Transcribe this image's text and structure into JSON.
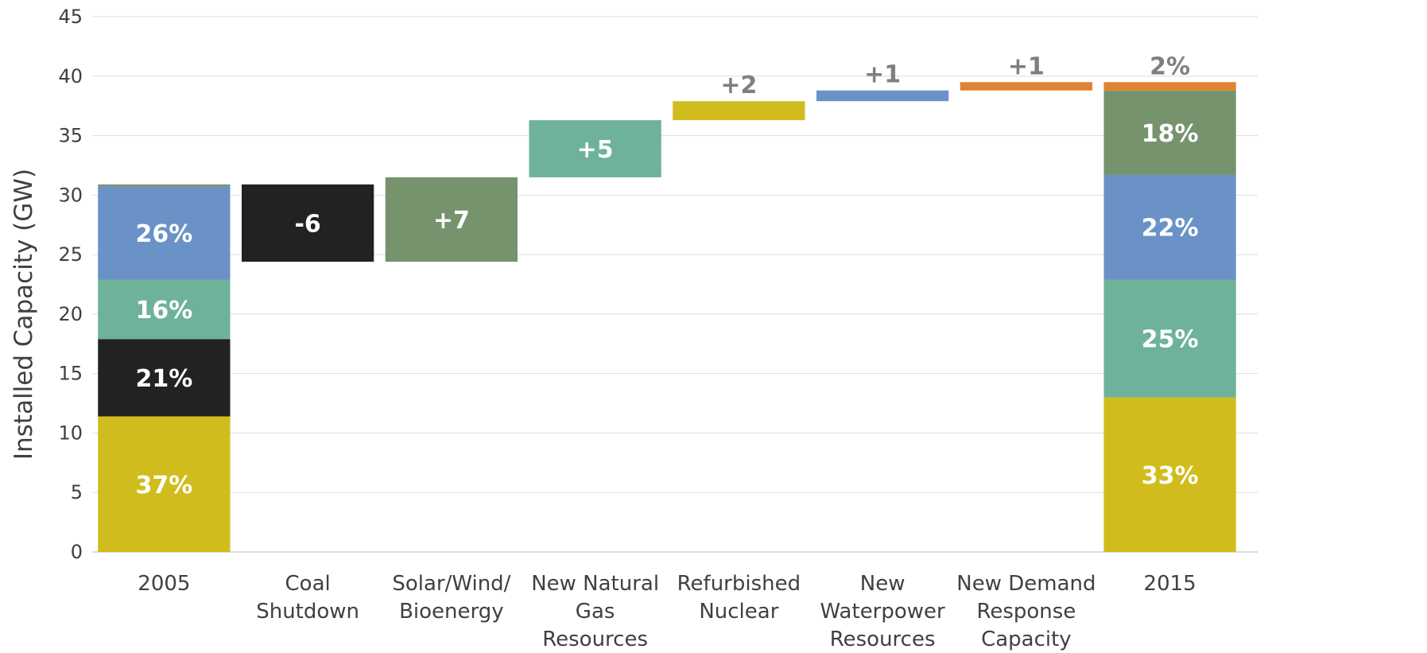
{
  "chart_data": {
    "type": "bar",
    "subtype": "waterfall",
    "title": "",
    "ylabel": "Installed Capacity (GW)",
    "xlabel": "",
    "ylim": [
      0,
      45
    ],
    "yticks": [
      0,
      5,
      10,
      15,
      20,
      25,
      30,
      35,
      40,
      45
    ],
    "grid": true,
    "legend": "none",
    "colors": {
      "nuclear": "#d0bd1d",
      "coal": "#222222",
      "gas": "#6eb29b",
      "water": "#6a92c7",
      "renewable": "#76936e",
      "demand": "#e08232"
    },
    "categories": [
      {
        "label": [
          "2005"
        ]
      },
      {
        "label": [
          "Coal",
          "Shutdown"
        ]
      },
      {
        "label": [
          "Solar/Wind/",
          "Bioenergy"
        ]
      },
      {
        "label": [
          "New Natural",
          "Gas",
          "Resources"
        ]
      },
      {
        "label": [
          "Refurbished",
          "Nuclear"
        ]
      },
      {
        "label": [
          "New",
          "Waterpower",
          "Resources"
        ]
      },
      {
        "label": [
          "New Demand",
          "Response",
          "Capacity"
        ]
      },
      {
        "label": [
          "2015"
        ]
      }
    ],
    "bars": [
      {
        "category": 0,
        "segments": [
          {
            "from": 0,
            "to": 11.4,
            "color": "nuclear",
            "label": "37%",
            "labelColor": "#ffffff"
          },
          {
            "from": 11.4,
            "to": 17.9,
            "color": "coal",
            "label": "21%",
            "labelColor": "#ffffff"
          },
          {
            "from": 17.9,
            "to": 22.9,
            "color": "gas",
            "label": "16%",
            "labelColor": "#ffffff"
          },
          {
            "from": 22.9,
            "to": 30.7,
            "color": "water",
            "label": "26%",
            "labelColor": "#ffffff"
          },
          {
            "from": 30.7,
            "to": 30.9,
            "color": "renewable",
            "label": "",
            "labelColor": "#ffffff"
          }
        ]
      },
      {
        "category": 1,
        "segments": [
          {
            "from": 24.4,
            "to": 30.9,
            "color": "coal",
            "label": "-6",
            "labelColor": "#ffffff"
          }
        ]
      },
      {
        "category": 2,
        "segments": [
          {
            "from": 24.4,
            "to": 31.5,
            "color": "renewable",
            "label": "+7",
            "labelColor": "#ffffff"
          }
        ]
      },
      {
        "category": 3,
        "segments": [
          {
            "from": 31.5,
            "to": 36.3,
            "color": "gas",
            "label": "+5",
            "labelColor": "#ffffff"
          }
        ]
      },
      {
        "category": 4,
        "segments": [
          {
            "from": 36.3,
            "to": 37.9,
            "color": "nuclear",
            "label": "+2",
            "labelColor": "#7f7f7f",
            "labelAbove": true
          }
        ]
      },
      {
        "category": 5,
        "segments": [
          {
            "from": 37.9,
            "to": 38.8,
            "color": "water",
            "label": "+1",
            "labelColor": "#7f7f7f",
            "labelAbove": true
          }
        ]
      },
      {
        "category": 6,
        "segments": [
          {
            "from": 38.8,
            "to": 39.5,
            "color": "demand",
            "label": "+1",
            "labelColor": "#7f7f7f",
            "labelAbove": true
          }
        ]
      },
      {
        "category": 7,
        "segments": [
          {
            "from": 0,
            "to": 13.0,
            "color": "nuclear",
            "label": "33%",
            "labelColor": "#ffffff"
          },
          {
            "from": 13.0,
            "to": 22.9,
            "color": "gas",
            "label": "25%",
            "labelColor": "#ffffff"
          },
          {
            "from": 22.9,
            "to": 31.7,
            "color": "water",
            "label": "22%",
            "labelColor": "#ffffff"
          },
          {
            "from": 31.7,
            "to": 38.8,
            "color": "renewable",
            "label": "18%",
            "labelColor": "#ffffff"
          },
          {
            "from": 38.8,
            "to": 39.5,
            "color": "demand",
            "label": "2%",
            "labelColor": "#7f7f7f",
            "labelAbove": true
          }
        ]
      }
    ]
  }
}
